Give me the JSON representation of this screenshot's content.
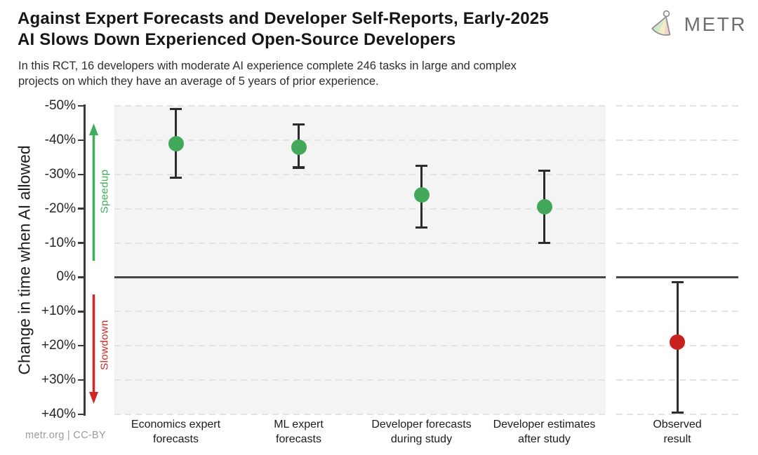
{
  "header": {
    "title_lines": [
      "Against Expert Forecasts and Developer Self-Reports, Early-2025",
      "AI Slows Down Experienced Open-Source Developers"
    ],
    "subtitle_lines": [
      "In this RCT, 16 developers with moderate AI experience complete 246 tasks in large and complex",
      "projects on which they have an average of 5 years of prior experience."
    ],
    "logo_text": "METR"
  },
  "footer": {
    "credit": "metr.org  |  CC-BY"
  },
  "colors": {
    "speedup_green": "#44a85b",
    "slowdown_red": "#c92120",
    "arrow_green": "#3fae5c",
    "arrow_red": "#d02724",
    "panel_bg": "#f4f4f4",
    "grid": "#e3e3e3",
    "axis": "#3a3a3a",
    "errorbar": "#2d2d2d"
  },
  "chart_data": {
    "type": "scatter",
    "title": "Against Expert Forecasts and Developer Self-Reports, Early-2025 AI Slows Down Experienced Open-Source Developers",
    "ylabel": "Change in time when AI allowed",
    "ylim": [
      -50,
      40
    ],
    "y_axis_inverted": "negative values (speedup) plotted upward",
    "grid": "horizontal dashed",
    "zero_line": 0,
    "yticks": [
      {
        "value": -50,
        "label": "-50%"
      },
      {
        "value": -40,
        "label": "-40%"
      },
      {
        "value": -30,
        "label": "-30%"
      },
      {
        "value": -20,
        "label": "-20%"
      },
      {
        "value": -10,
        "label": "-10%"
      },
      {
        "value": 0,
        "label": "0%"
      },
      {
        "value": 10,
        "label": "+10%"
      },
      {
        "value": 20,
        "label": "+20%"
      },
      {
        "value": 30,
        "label": "+30%"
      },
      {
        "value": 40,
        "label": "+40%"
      }
    ],
    "annotations": [
      {
        "text": "Speedup",
        "arrow": "up",
        "color": "#3fae5c"
      },
      {
        "text": "Slowdown",
        "arrow": "down",
        "color": "#d02724"
      }
    ],
    "points": [
      {
        "category": "Economics expert forecasts",
        "label_lines": [
          "Economics expert",
          "forecasts"
        ],
        "value": -39,
        "ci_low": -49,
        "ci_high": -29,
        "color": "#44a85b",
        "panel": "main"
      },
      {
        "category": "ML expert forecasts",
        "label_lines": [
          "ML expert",
          "forecasts"
        ],
        "value": -38,
        "ci_low": -44.5,
        "ci_high": -32,
        "color": "#44a85b",
        "panel": "main"
      },
      {
        "category": "Developer forecasts during study",
        "label_lines": [
          "Developer forecasts",
          "during study"
        ],
        "value": -24,
        "ci_low": -32.5,
        "ci_high": -14.5,
        "color": "#44a85b",
        "panel": "main"
      },
      {
        "category": "Developer estimates after study",
        "label_lines": [
          "Developer estimates",
          "after study"
        ],
        "value": -20.5,
        "ci_low": -31,
        "ci_high": -10,
        "color": "#44a85b",
        "panel": "main"
      },
      {
        "category": "Observed result",
        "label_lines": [
          "Observed",
          "result"
        ],
        "value": 19,
        "ci_low": 1.5,
        "ci_high": 39.5,
        "color": "#c92120",
        "panel": "right"
      }
    ]
  }
}
